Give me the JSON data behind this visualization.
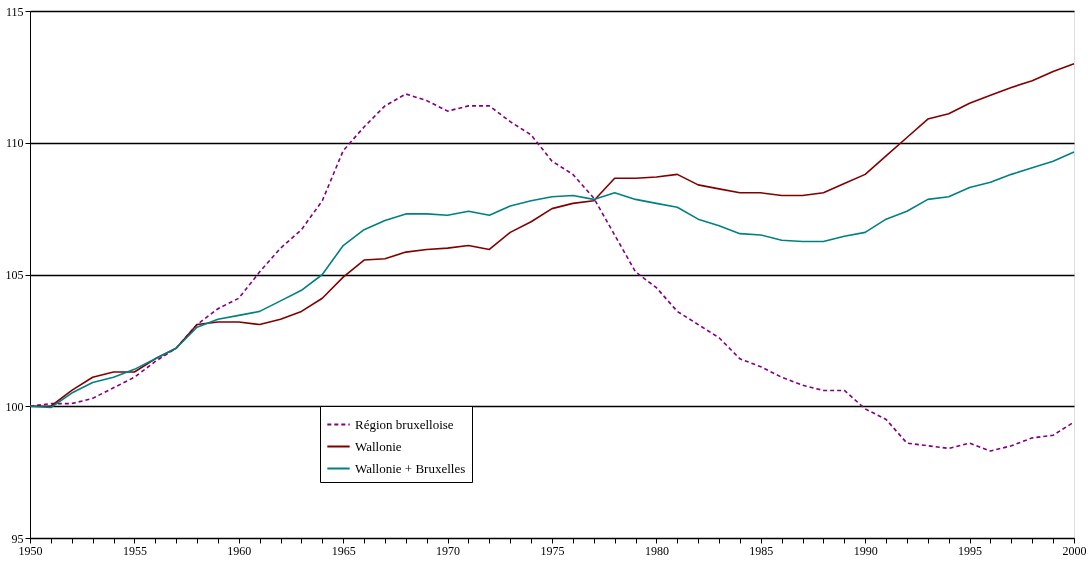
{
  "chart_data": {
    "type": "line",
    "x": [
      1950,
      1951,
      1952,
      1953,
      1954,
      1955,
      1956,
      1957,
      1958,
      1959,
      1960,
      1961,
      1962,
      1963,
      1964,
      1965,
      1966,
      1967,
      1968,
      1969,
      1970,
      1971,
      1972,
      1973,
      1974,
      1975,
      1976,
      1977,
      1978,
      1979,
      1980,
      1981,
      1982,
      1983,
      1984,
      1985,
      1986,
      1987,
      1988,
      1989,
      1990,
      1991,
      1992,
      1993,
      1994,
      1995,
      1996,
      1997,
      1998,
      1999,
      2000
    ],
    "series": [
      {
        "name": "Région bruxelloise",
        "color": "#800080",
        "line_style": "dashed",
        "values": [
          100.0,
          100.1,
          100.1,
          100.3,
          100.7,
          101.1,
          101.7,
          102.2,
          103.1,
          103.7,
          104.1,
          105.1,
          106.0,
          106.7,
          107.8,
          109.7,
          110.6,
          111.4,
          111.85,
          111.6,
          111.2,
          111.4,
          111.4,
          110.8,
          110.3,
          109.3,
          108.8,
          107.9,
          106.5,
          105.1,
          104.5,
          103.6,
          103.1,
          102.6,
          101.8,
          101.5,
          101.1,
          100.8,
          100.6,
          100.6,
          99.9,
          99.5,
          98.6,
          98.5,
          98.4,
          98.6,
          98.3,
          98.5,
          98.8,
          98.9,
          99.4
        ]
      },
      {
        "name": "Wallonie",
        "color": "#800000",
        "line_style": "solid",
        "values": [
          100.0,
          100.0,
          100.6,
          101.1,
          101.3,
          101.3,
          101.8,
          102.2,
          103.1,
          103.2,
          103.2,
          103.1,
          103.3,
          103.6,
          104.1,
          104.9,
          105.55,
          105.6,
          105.85,
          105.95,
          106.0,
          106.1,
          105.95,
          106.6,
          107.0,
          107.5,
          107.7,
          107.8,
          108.65,
          108.65,
          108.7,
          108.8,
          108.4,
          108.25,
          108.1,
          108.1,
          108.0,
          108.0,
          108.1,
          108.45,
          108.8,
          109.5,
          110.2,
          110.9,
          111.1,
          111.5,
          111.8,
          112.1,
          112.35,
          112.7,
          113.0
        ]
      },
      {
        "name": "Wallonie + Bruxelles",
        "color": "#008080",
        "line_style": "solid",
        "values": [
          100.0,
          99.95,
          100.5,
          100.9,
          101.1,
          101.4,
          101.8,
          102.2,
          103.0,
          103.3,
          103.45,
          103.6,
          104.0,
          104.4,
          105.0,
          106.1,
          106.7,
          107.05,
          107.3,
          107.3,
          107.25,
          107.4,
          107.25,
          107.6,
          107.8,
          107.95,
          108.0,
          107.85,
          108.1,
          107.85,
          107.7,
          107.55,
          107.1,
          106.85,
          106.55,
          106.5,
          106.3,
          106.25,
          106.25,
          106.45,
          106.6,
          107.1,
          107.4,
          107.85,
          107.95,
          108.3,
          108.5,
          108.8,
          109.05,
          109.3,
          109.65
        ]
      }
    ],
    "xlim": [
      1950,
      2000
    ],
    "xticks": [
      1950,
      {
        "value": 1951,
        "label": null
      },
      {
        "value": 1952,
        "label": null
      },
      {
        "value": 1953,
        "label": null
      },
      {
        "value": 1954,
        "label": null
      },
      1955,
      {
        "value": 1956,
        "label": null
      },
      {
        "value": 1957,
        "label": null
      },
      {
        "value": 1958,
        "label": null
      },
      {
        "value": 1959,
        "label": null
      },
      1960,
      {
        "value": 1961,
        "label": null
      },
      {
        "value": 1962,
        "label": null
      },
      {
        "value": 1963,
        "label": null
      },
      {
        "value": 1964,
        "label": null
      },
      1965,
      {
        "value": 1966,
        "label": null
      },
      {
        "value": 1967,
        "label": null
      },
      {
        "value": 1968,
        "label": null
      },
      {
        "value": 1969,
        "label": null
      },
      1970,
      {
        "value": 1971,
        "label": null
      },
      {
        "value": 1972,
        "label": null
      },
      {
        "value": 1973,
        "label": null
      },
      {
        "value": 1974,
        "label": null
      },
      1975,
      {
        "value": 1976,
        "label": null
      },
      {
        "value": 1977,
        "label": null
      },
      {
        "value": 1978,
        "label": null
      },
      {
        "value": 1979,
        "label": null
      },
      1980,
      {
        "value": 1981,
        "label": null
      },
      {
        "value": 1982,
        "label": null
      },
      {
        "value": 1983,
        "label": null
      },
      {
        "value": 1984,
        "label": null
      },
      1985,
      {
        "value": 1986,
        "label": null
      },
      {
        "value": 1987,
        "label": null
      },
      {
        "value": 1988,
        "label": null
      },
      {
        "value": 1989,
        "label": null
      },
      1990,
      {
        "value": 1991,
        "label": null
      },
      {
        "value": 1992,
        "label": null
      },
      {
        "value": 1993,
        "label": null
      },
      {
        "value": 1994,
        "label": null
      },
      1995,
      {
        "value": 1996,
        "label": null
      },
      {
        "value": 1997,
        "label": null
      },
      {
        "value": 1998,
        "label": null
      },
      {
        "value": 1999,
        "label": null
      },
      2000
    ],
    "ylim": [
      95,
      115
    ],
    "yticks": [
      95,
      100,
      105,
      110,
      115
    ],
    "grid": "y",
    "legend": "bottom",
    "marker": "none"
  }
}
